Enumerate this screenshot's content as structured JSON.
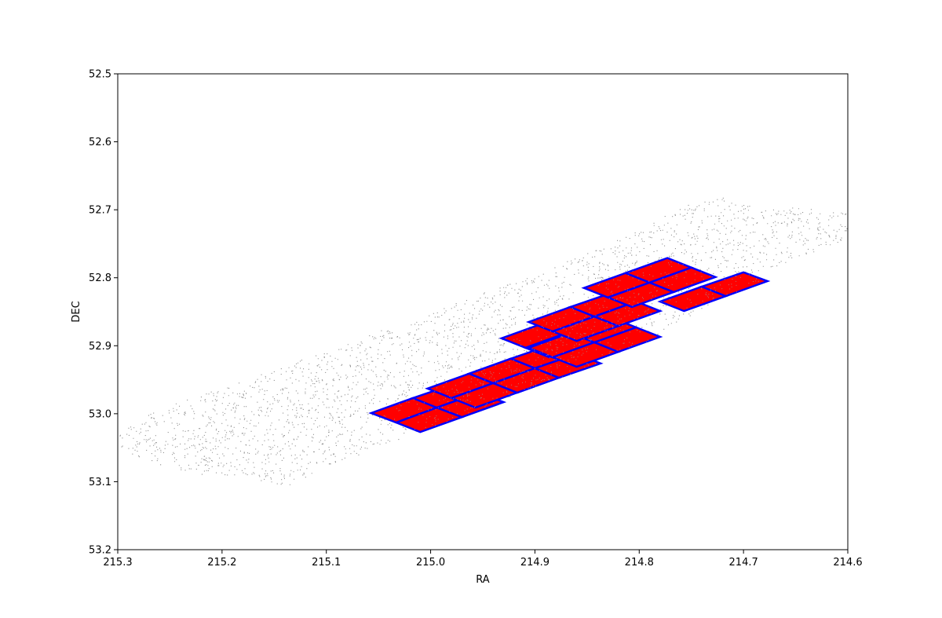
{
  "chart_data": {
    "type": "scatter",
    "title": "",
    "xlabel": "RA",
    "ylabel": "DEC",
    "xlim": [
      215.3,
      214.6
    ],
    "ylim": [
      53.2,
      52.5
    ],
    "x_axis_inverted": true,
    "y_axis_inverted": true,
    "grid": false,
    "x_ticks": [
      "215.3",
      "215.2",
      "215.1",
      "215.0",
      "214.9",
      "214.8",
      "214.7",
      "214.6"
    ],
    "x_tick_values": [
      215.3,
      215.2,
      215.1,
      215.0,
      214.9,
      214.8,
      214.7,
      214.6
    ],
    "y_ticks": [
      "52.5",
      "52.6",
      "52.7",
      "52.8",
      "52.9",
      "53.0",
      "53.1",
      "53.2"
    ],
    "y_tick_values": [
      52.5,
      52.6,
      52.7,
      52.8,
      52.9,
      53.0,
      53.1,
      53.2
    ],
    "colors": {
      "points": "#808080",
      "field_fill": "#ff0000",
      "field_edge": "#0000ff",
      "field_points": "#b08080"
    },
    "series": [
      {
        "kind": "scatter",
        "color": "#808080",
        "region_outline": [
          [
            215.3,
            53.05
          ],
          [
            215.26,
            53.075
          ],
          [
            215.22,
            53.09
          ],
          [
            215.18,
            53.093
          ],
          [
            215.14,
            53.107
          ],
          [
            215.1,
            53.08
          ],
          [
            215.06,
            53.055
          ],
          [
            215.0,
            53.02
          ],
          [
            214.93,
            52.98
          ],
          [
            214.86,
            52.935
          ],
          [
            214.79,
            52.89
          ],
          [
            214.74,
            52.845
          ],
          [
            214.69,
            52.795
          ],
          [
            214.64,
            52.765
          ],
          [
            214.6,
            52.745
          ],
          [
            214.6,
            52.705
          ],
          [
            214.64,
            52.695
          ],
          [
            214.68,
            52.7
          ],
          [
            214.72,
            52.682
          ],
          [
            214.76,
            52.695
          ],
          [
            214.8,
            52.73
          ],
          [
            214.86,
            52.77
          ],
          [
            214.93,
            52.81
          ],
          [
            215.0,
            52.85
          ],
          [
            215.08,
            52.895
          ],
          [
            215.15,
            52.935
          ],
          [
            215.22,
            52.97
          ],
          [
            215.27,
            53.0
          ],
          [
            215.3,
            53.025
          ]
        ],
        "point_count": 9000
      },
      {
        "kind": "footprints",
        "fill": "#ff0000",
        "edge": "#0000ff",
        "quads": [
          [
            [
              215.057,
              52.999
            ],
            [
              215.017,
              52.977
            ],
            [
              214.994,
              52.991
            ],
            [
              215.033,
              53.013
            ]
          ],
          [
            [
              215.017,
              52.977
            ],
            [
              214.977,
              52.956
            ],
            [
              214.954,
              52.969
            ],
            [
              214.994,
              52.991
            ]
          ],
          [
            [
              215.033,
              53.013
            ],
            [
              214.994,
              52.991
            ],
            [
              214.97,
              53.005
            ],
            [
              215.01,
              53.027
            ]
          ],
          [
            [
              214.994,
              52.991
            ],
            [
              214.954,
              52.969
            ],
            [
              214.93,
              52.983
            ],
            [
              214.97,
              53.005
            ]
          ],
          [
            [
              215.003,
              52.963
            ],
            [
              214.963,
              52.941
            ],
            [
              214.94,
              52.955
            ],
            [
              214.98,
              52.977
            ]
          ],
          [
            [
              214.963,
              52.941
            ],
            [
              214.923,
              52.919
            ],
            [
              214.9,
              52.933
            ],
            [
              214.94,
              52.955
            ]
          ],
          [
            [
              214.98,
              52.977
            ],
            [
              214.94,
              52.955
            ],
            [
              214.917,
              52.969
            ],
            [
              214.957,
              52.991
            ]
          ],
          [
            [
              214.94,
              52.955
            ],
            [
              214.9,
              52.933
            ],
            [
              214.877,
              52.947
            ],
            [
              214.917,
              52.969
            ]
          ],
          [
            [
              214.963,
              52.941
            ],
            [
              214.923,
              52.919
            ],
            [
              214.9,
              52.933
            ],
            [
              214.94,
              52.955
            ]
          ],
          [
            [
              214.923,
              52.919
            ],
            [
              214.883,
              52.898
            ],
            [
              214.86,
              52.912
            ],
            [
              214.9,
              52.933
            ]
          ],
          [
            [
              214.94,
              52.955
            ],
            [
              214.9,
              52.933
            ],
            [
              214.877,
              52.947
            ],
            [
              214.917,
              52.969
            ]
          ],
          [
            [
              214.9,
              52.933
            ],
            [
              214.86,
              52.912
            ],
            [
              214.837,
              52.926
            ],
            [
              214.877,
              52.947
            ]
          ],
          [
            [
              214.932,
              52.889
            ],
            [
              214.892,
              52.867
            ],
            [
              214.869,
              52.881
            ],
            [
              214.909,
              52.903
            ]
          ],
          [
            [
              214.892,
              52.867
            ],
            [
              214.852,
              52.845
            ],
            [
              214.829,
              52.859
            ],
            [
              214.869,
              52.881
            ]
          ],
          [
            [
              214.909,
              52.903
            ],
            [
              214.869,
              52.881
            ],
            [
              214.846,
              52.895
            ],
            [
              214.886,
              52.917
            ]
          ],
          [
            [
              214.869,
              52.881
            ],
            [
              214.829,
              52.859
            ],
            [
              214.806,
              52.873
            ],
            [
              214.846,
              52.895
            ]
          ],
          [
            [
              214.906,
              52.903
            ],
            [
              214.866,
              52.881
            ],
            [
              214.843,
              52.895
            ],
            [
              214.883,
              52.917
            ]
          ],
          [
            [
              214.866,
              52.881
            ],
            [
              214.826,
              52.859
            ],
            [
              214.803,
              52.873
            ],
            [
              214.843,
              52.895
            ]
          ],
          [
            [
              214.883,
              52.917
            ],
            [
              214.843,
              52.895
            ],
            [
              214.82,
              52.909
            ],
            [
              214.86,
              52.931
            ]
          ],
          [
            [
              214.843,
              52.895
            ],
            [
              214.803,
              52.873
            ],
            [
              214.78,
              52.887
            ],
            [
              214.82,
              52.909
            ]
          ],
          [
            [
              214.906,
              52.865
            ],
            [
              214.866,
              52.843
            ],
            [
              214.843,
              52.857
            ],
            [
              214.883,
              52.879
            ]
          ],
          [
            [
              214.866,
              52.843
            ],
            [
              214.826,
              52.822
            ],
            [
              214.803,
              52.835
            ],
            [
              214.843,
              52.857
            ]
          ],
          [
            [
              214.883,
              52.879
            ],
            [
              214.843,
              52.857
            ],
            [
              214.82,
              52.871
            ],
            [
              214.86,
              52.893
            ]
          ],
          [
            [
              214.843,
              52.857
            ],
            [
              214.803,
              52.835
            ],
            [
              214.78,
              52.849
            ],
            [
              214.82,
              52.871
            ]
          ],
          [
            [
              214.853,
              52.815
            ],
            [
              214.813,
              52.793
            ],
            [
              214.79,
              52.807
            ],
            [
              214.83,
              52.829
            ]
          ],
          [
            [
              214.813,
              52.793
            ],
            [
              214.773,
              52.771
            ],
            [
              214.75,
              52.785
            ],
            [
              214.79,
              52.807
            ]
          ],
          [
            [
              214.83,
              52.829
            ],
            [
              214.79,
              52.807
            ],
            [
              214.767,
              52.821
            ],
            [
              214.807,
              52.843
            ]
          ],
          [
            [
              214.79,
              52.807
            ],
            [
              214.75,
              52.785
            ],
            [
              214.727,
              52.799
            ],
            [
              214.767,
              52.821
            ]
          ],
          [
            [
              214.78,
              52.835
            ],
            [
              214.74,
              52.813
            ],
            [
              214.717,
              52.827
            ],
            [
              214.757,
              52.849
            ]
          ],
          [
            [
              214.74,
              52.813
            ],
            [
              214.7,
              52.792
            ],
            [
              214.677,
              52.805
            ],
            [
              214.717,
              52.827
            ]
          ]
        ]
      }
    ]
  }
}
